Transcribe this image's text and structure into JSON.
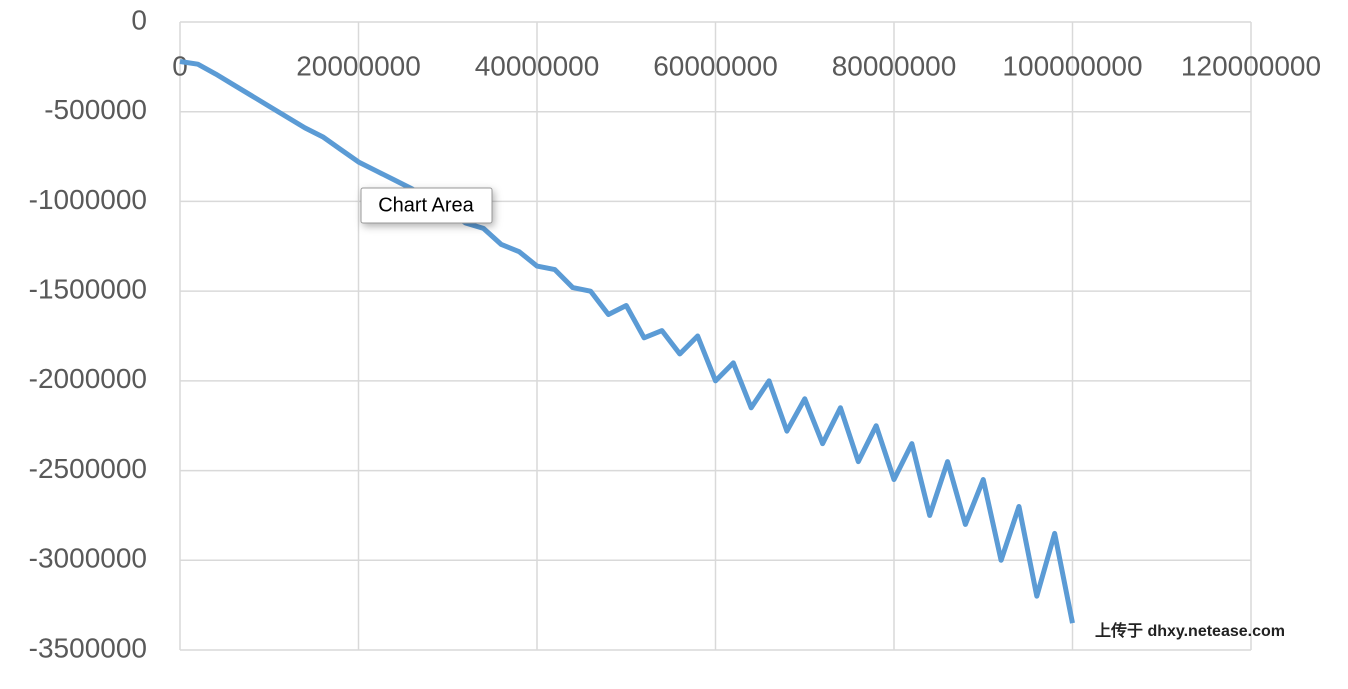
{
  "chart_data": {
    "type": "line",
    "x": [
      0,
      2000000,
      4000000,
      6000000,
      8000000,
      10000000,
      12000000,
      14000000,
      16000000,
      18000000,
      20000000,
      22000000,
      24000000,
      26000000,
      28000000,
      30000000,
      32000000,
      34000000,
      36000000,
      38000000,
      40000000,
      42000000,
      44000000,
      46000000,
      48000000,
      50000000,
      52000000,
      54000000,
      56000000,
      58000000,
      60000000,
      62000000,
      64000000,
      66000000,
      68000000,
      70000000,
      72000000,
      74000000,
      76000000,
      78000000,
      80000000,
      82000000,
      84000000,
      86000000,
      88000000,
      90000000,
      92000000,
      94000000,
      96000000,
      98000000,
      100000000
    ],
    "series": [
      {
        "color": "#5b9bd5",
        "values": [
          -220000,
          -235000,
          -290000,
          -350000,
          -410000,
          -470000,
          -530000,
          -590000,
          -640000,
          -710000,
          -780000,
          -830000,
          -880000,
          -930000,
          -990000,
          -1050000,
          -1120000,
          -1150000,
          -1240000,
          -1280000,
          -1360000,
          -1380000,
          -1480000,
          -1500000,
          -1630000,
          -1580000,
          -1760000,
          -1720000,
          -1850000,
          -1750000,
          -2000000,
          -1900000,
          -2150000,
          -2000000,
          -2280000,
          -2100000,
          -2350000,
          -2150000,
          -2450000,
          -2250000,
          -2550000,
          -2350000,
          -2750000,
          -2450000,
          -2800000,
          -2550000,
          -3000000,
          -2700000,
          -3200000,
          -2850000,
          -3350000
        ]
      }
    ],
    "xlim": [
      0,
      120000000
    ],
    "xticks": [
      0,
      20000000,
      40000000,
      60000000,
      80000000,
      100000000,
      120000000
    ],
    "ylim": [
      -3500000,
      0
    ],
    "yticks": [
      0,
      -500000,
      -1000000,
      -1500000,
      -2000000,
      -2500000,
      -3000000,
      -3500000
    ],
    "grid": true,
    "tooltip": "Chart Area",
    "watermark": "上传于 dhxy.netease.com"
  }
}
